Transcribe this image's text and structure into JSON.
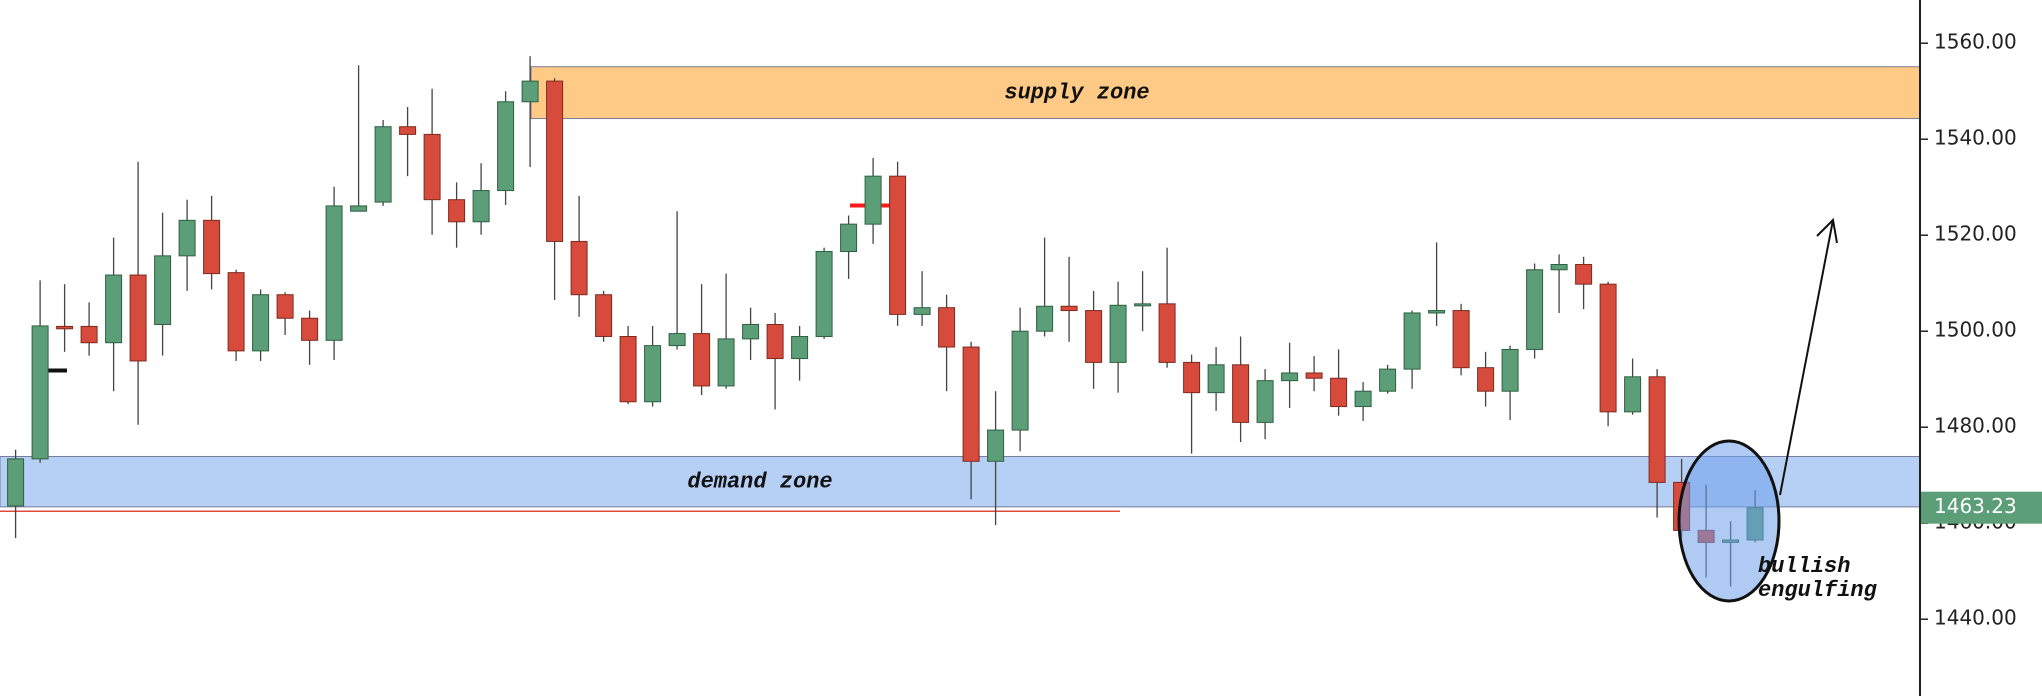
{
  "chart_data": {
    "type": "candlestick",
    "up_color": "#5b9e78",
    "down_color": "#d64b3b",
    "open": [
      1463.6,
      1473.4,
      1501.0,
      1501.0,
      1497.6,
      1511.7,
      1501.4,
      1515.7,
      1523.1,
      1512.2,
      1495.9,
      1507.6,
      1502.7,
      1498.1,
      1525.0,
      1526.9,
      1542.6,
      1541.0,
      1527.4,
      1522.8,
      1529.3,
      1547.8,
      1552.1,
      1518.7,
      1507.6,
      1498.9,
      1485.3,
      1497.0,
      1499.5,
      1488.6,
      1498.4,
      1501.4,
      1494.3,
      1498.9,
      1516.6,
      1522.3,
      1532.3,
      1503.5,
      1504.9,
      1496.7,
      1472.9,
      1479.4,
      1500.0,
      1505.2,
      1504.3,
      1493.5,
      1505.4,
      1505.7,
      1493.5,
      1487.2,
      1493.0,
      1481.0,
      1489.7,
      1491.3,
      1490.2,
      1484.3,
      1487.5,
      1492.1,
      1503.8,
      1504.3,
      1492.4,
      1487.5,
      1496.2,
      1512.8,
      1513.9,
      1509.8,
      1483.2,
      1490.5,
      1468.5,
      1458.5,
      1456.0,
      1456.5
    ],
    "high": [
      1475.3,
      1510.6,
      1509.8,
      1506.0,
      1519.5,
      1535.3,
      1524.7,
      1527.4,
      1528.2,
      1512.8,
      1508.7,
      1508.1,
      1504.3,
      1530.1,
      1555.4,
      1544.0,
      1546.7,
      1550.5,
      1531.0,
      1535.0,
      1550.0,
      1557.3,
      1552.7,
      1528.2,
      1508.4,
      1501.1,
      1501.1,
      1525.0,
      1509.8,
      1512.0,
      1504.9,
      1503.8,
      1501.1,
      1517.4,
      1524.1,
      1536.1,
      1535.3,
      1512.5,
      1507.6,
      1497.8,
      1487.5,
      1504.9,
      1519.5,
      1515.5,
      1508.4,
      1510.3,
      1512.5,
      1517.4,
      1495.1,
      1496.7,
      1498.9,
      1492.1,
      1497.6,
      1494.8,
      1496.2,
      1489.4,
      1493.0,
      1504.3,
      1518.5,
      1505.7,
      1495.7,
      1497.0,
      1514.1,
      1516.0,
      1515.5,
      1510.3,
      1494.3,
      1492.1,
      1473.4,
      1468.0,
      1460.4,
      1466.9
    ],
    "low": [
      1456.9,
      1472.6,
      1495.7,
      1494.9,
      1487.5,
      1480.5,
      1494.9,
      1508.4,
      1508.7,
      1493.8,
      1493.8,
      1499.2,
      1493.0,
      1494.0,
      1525.5,
      1526.1,
      1532.3,
      1520.1,
      1517.4,
      1520.1,
      1526.3,
      1534.2,
      1506.5,
      1503.0,
      1497.8,
      1484.8,
      1484.3,
      1496.2,
      1486.7,
      1488.0,
      1494.0,
      1483.7,
      1489.7,
      1498.4,
      1510.9,
      1518.2,
      1501.1,
      1501.1,
      1487.5,
      1465.0,
      1459.6,
      1475.0,
      1498.9,
      1497.8,
      1488.0,
      1487.2,
      1500.0,
      1492.4,
      1474.5,
      1483.4,
      1476.9,
      1477.5,
      1484.0,
      1487.5,
      1482.4,
      1481.3,
      1487.0,
      1488.0,
      1501.1,
      1490.8,
      1484.3,
      1481.5,
      1494.3,
      1503.8,
      1504.6,
      1480.2,
      1482.6,
      1461.2,
      1457.1,
      1448.7,
      1446.8,
      1456.0
    ],
    "close": [
      1473.4,
      1501.1,
      1500.5,
      1497.6,
      1511.7,
      1493.8,
      1515.7,
      1523.1,
      1512.0,
      1495.9,
      1507.6,
      1502.7,
      1498.1,
      1526.1,
      1526.1,
      1542.6,
      1541.0,
      1527.4,
      1522.8,
      1529.3,
      1547.8,
      1552.1,
      1518.7,
      1507.6,
      1498.9,
      1485.3,
      1497.0,
      1499.5,
      1488.6,
      1498.4,
      1501.4,
      1494.3,
      1498.9,
      1516.6,
      1522.3,
      1532.3,
      1503.5,
      1504.9,
      1496.7,
      1472.9,
      1479.4,
      1500.0,
      1505.2,
      1504.3,
      1493.5,
      1505.4,
      1505.7,
      1493.5,
      1487.2,
      1493.0,
      1481.0,
      1489.7,
      1491.3,
      1490.2,
      1484.3,
      1487.5,
      1492.1,
      1503.8,
      1504.3,
      1492.4,
      1487.5,
      1496.2,
      1512.8,
      1513.9,
      1509.8,
      1483.2,
      1490.5,
      1468.5,
      1458.5,
      1456.0,
      1456.5,
      1463.23
    ],
    "ylim": [
      1424,
      1569
    ],
    "yticks": [
      {
        "value": 1440,
        "label": "1440.00"
      },
      {
        "value": 1460,
        "label": "1460.00"
      },
      {
        "value": 1480,
        "label": "1480.00"
      },
      {
        "value": 1500,
        "label": "1500.00"
      },
      {
        "value": 1520,
        "label": "1520.00"
      },
      {
        "value": 1540,
        "label": "1540.00"
      },
      {
        "value": 1560,
        "label": "1560.00"
      }
    ],
    "last_price": {
      "value": 1463.23,
      "label": "1463.23",
      "color": "#5b9e78"
    },
    "zones": [
      {
        "label": "supply zone",
        "from": 1544.3,
        "to": 1555.1,
        "color": "rgba(255,170,60,0.62)"
      },
      {
        "label": "demand zone",
        "from": 1463.4,
        "to": 1473.9,
        "color": "rgba(110,160,235,0.5)"
      }
    ],
    "levels": [
      {
        "value": 1462.5,
        "color": "#e04b3b"
      },
      {
        "value": 1491.8,
        "color": "#111111"
      },
      {
        "value": 1526.2,
        "color": "#ff1a1a"
      }
    ],
    "annotation": [
      "bullish",
      "engulfing"
    ]
  }
}
